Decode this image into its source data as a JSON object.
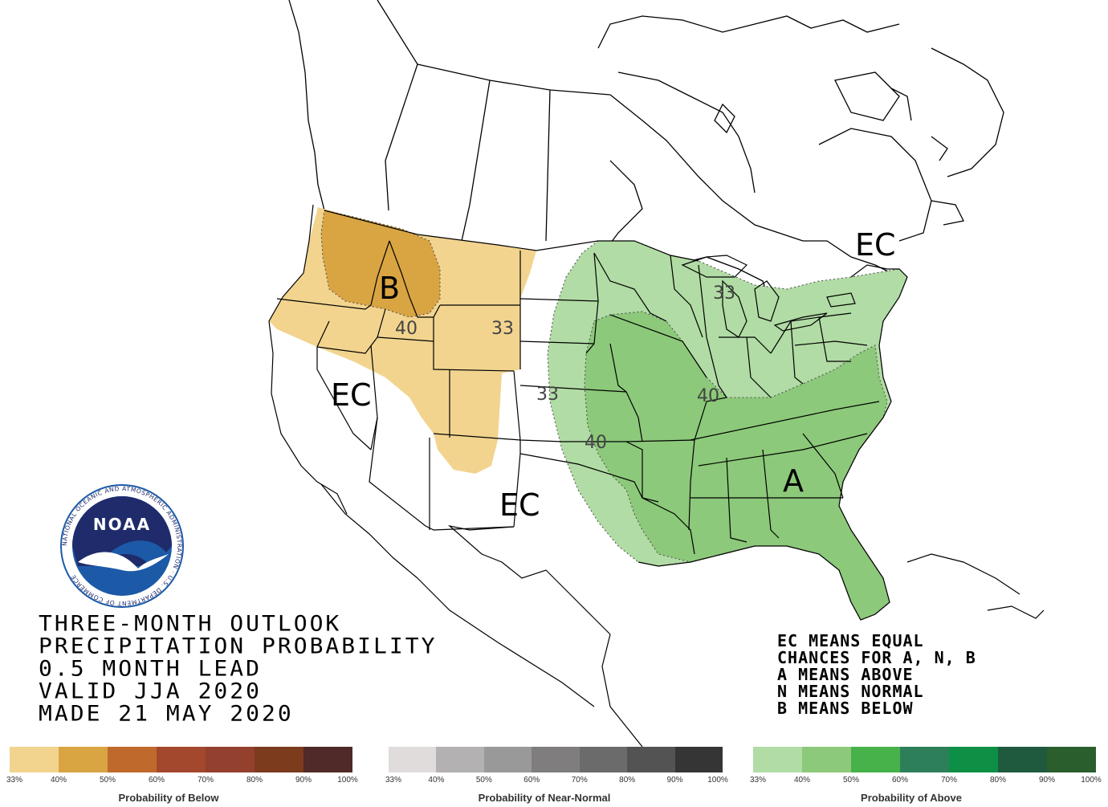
{
  "title_lines": [
    "THREE-MONTH OUTLOOK",
    "PRECIPITATION PROBABILITY",
    "0.5 MONTH LEAD",
    "VALID JJA 2020",
    "MADE 21 MAY 2020"
  ],
  "legend_note": [
    "EC MEANS EQUAL",
    "CHANCES FOR A, N, B",
    "A MEANS ABOVE",
    "N MEANS NORMAL",
    "B MEANS BELOW"
  ],
  "map_labels": {
    "below": "B",
    "above": "A",
    "ec_west": "EC",
    "ec_south": "EC",
    "ec_northeast": "EC",
    "c40_west": "40",
    "c33_west": "33",
    "c33_mid": "33",
    "c40_mid": "40",
    "c40_south": "40",
    "c33_lakes": "33"
  },
  "logo": {
    "text": "NOAA",
    "ring_text": "NATIONAL OCEANIC AND ATMOSPHERIC ADMINISTRATION · U.S. DEPARTMENT OF COMMERCE"
  },
  "scales": {
    "ticks": [
      "33%",
      "40%",
      "50%",
      "60%",
      "70%",
      "80%",
      "90%",
      "100%"
    ],
    "below": {
      "title": "Probability of Below",
      "colors": [
        "#f2d48f",
        "#d9a442",
        "#bf6a2c",
        "#a3482d",
        "#93402e",
        "#7c3b1d",
        "#4f2a28"
      ]
    },
    "near": {
      "title": "Probability of Near-Normal",
      "colors": [
        "#e1dcdc",
        "#b3b1b1",
        "#9a9999",
        "#7f7d7e",
        "#6c6b6b",
        "#545354",
        "#353535"
      ]
    },
    "above": {
      "title": "Probability of Above",
      "colors": [
        "#b1dca5",
        "#8cc97a",
        "#47b14a",
        "#2d7f5a",
        "#0d8f46",
        "#1f5a3e",
        "#2a5f2d"
      ]
    }
  },
  "colors": {
    "below_33": "#f2d48f",
    "below_40": "#d9a442",
    "above_33": "#b1dca5",
    "above_40": "#8cc97a",
    "noaa_blue": "#1c5aa8",
    "noaa_navy": "#1f2b6b"
  }
}
